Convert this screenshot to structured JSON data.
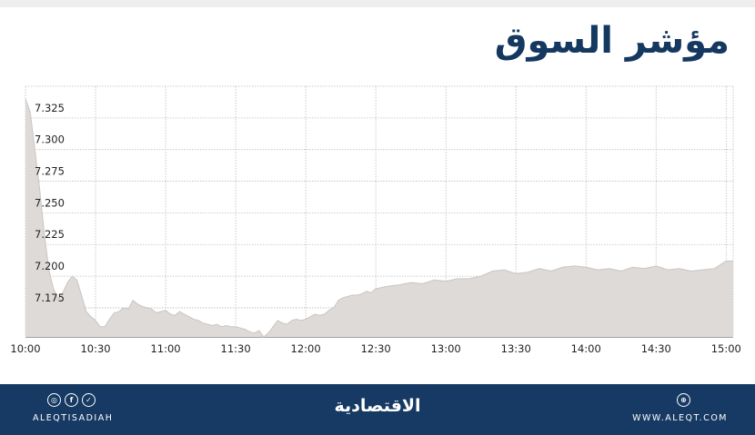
{
  "title": "مؤشر السوق",
  "chart_data": {
    "type": "area",
    "y_ticks": [
      "7.325",
      "7.300",
      "7.275",
      "7.250",
      "7.225",
      "7.200",
      "7.175"
    ],
    "y_tick_values": [
      7.325,
      7.3,
      7.275,
      7.25,
      7.225,
      7.2,
      7.175
    ],
    "x_ticks": [
      "10:00",
      "10:30",
      "11:00",
      "11:30",
      "12:00",
      "12:30",
      "13:00",
      "13:30",
      "14:00",
      "14:30",
      "15:00"
    ],
    "x_tick_values": [
      0,
      30,
      60,
      90,
      120,
      150,
      180,
      210,
      240,
      270,
      300
    ],
    "ylim": [
      7.152,
      7.35
    ],
    "grid": true,
    "series": [
      {
        "x": [
          0,
          2,
          4,
          6,
          8,
          10,
          12,
          14,
          16,
          18,
          20,
          22,
          24,
          26,
          28,
          30,
          32,
          34,
          36,
          38,
          40,
          42,
          44,
          46,
          48,
          50,
          52,
          54,
          56,
          58,
          60,
          62,
          64,
          66,
          68,
          70,
          72,
          74,
          76,
          78,
          80,
          82,
          84,
          86,
          88,
          90,
          92,
          94,
          96,
          98,
          100,
          102,
          104,
          106,
          108,
          110,
          112,
          114,
          116,
          118,
          120,
          122,
          124,
          126,
          128,
          130,
          132,
          134,
          136,
          138,
          140,
          142,
          144,
          146,
          148,
          150,
          155,
          160,
          165,
          170,
          175,
          180,
          185,
          190,
          195,
          200,
          205,
          210,
          215,
          220,
          225,
          230,
          235,
          240,
          245,
          250,
          255,
          260,
          265,
          270,
          275,
          280,
          285,
          290,
          295,
          300,
          303
        ],
        "values": [
          7.34,
          7.33,
          7.3,
          7.27,
          7.235,
          7.205,
          7.19,
          7.182,
          7.187,
          7.195,
          7.2,
          7.197,
          7.185,
          7.172,
          7.168,
          7.165,
          7.16,
          7.16,
          7.166,
          7.171,
          7.172,
          7.175,
          7.174,
          7.181,
          7.178,
          7.176,
          7.175,
          7.174,
          7.171,
          7.172,
          7.173,
          7.17,
          7.169,
          7.172,
          7.17,
          7.168,
          7.166,
          7.165,
          7.163,
          7.162,
          7.161,
          7.162,
          7.16,
          7.161,
          7.16,
          7.16,
          7.159,
          7.158,
          7.156,
          7.155,
          7.157,
          7.152,
          7.155,
          7.16,
          7.165,
          7.163,
          7.162,
          7.165,
          7.166,
          7.165,
          7.166,
          7.168,
          7.17,
          7.169,
          7.17,
          7.173,
          7.175,
          7.181,
          7.183,
          7.184,
          7.185,
          7.185,
          7.186,
          7.188,
          7.187,
          7.19,
          7.192,
          7.193,
          7.195,
          7.194,
          7.197,
          7.196,
          7.198,
          7.198,
          7.2,
          7.204,
          7.205,
          7.202,
          7.203,
          7.206,
          7.204,
          7.207,
          7.208,
          7.207,
          7.205,
          7.206,
          7.204,
          7.207,
          7.206,
          7.208,
          7.205,
          7.206,
          7.204,
          7.205,
          7.206,
          7.212,
          7.212
        ]
      }
    ]
  },
  "footer": {
    "brand": "الاقتصادية",
    "handle": "ALEQTISADIAH",
    "website": "WWW.ALEQT.COM",
    "social_icons": [
      "instagram-icon",
      "facebook-icon",
      "twitter-icon"
    ],
    "web_icon": "globe-icon"
  },
  "colors": {
    "title": "#14385f",
    "footer_bg": "#163a63",
    "area_fill": "#dedad7",
    "area_line": "#c9c5c2",
    "grid": "#bdbdbd"
  }
}
